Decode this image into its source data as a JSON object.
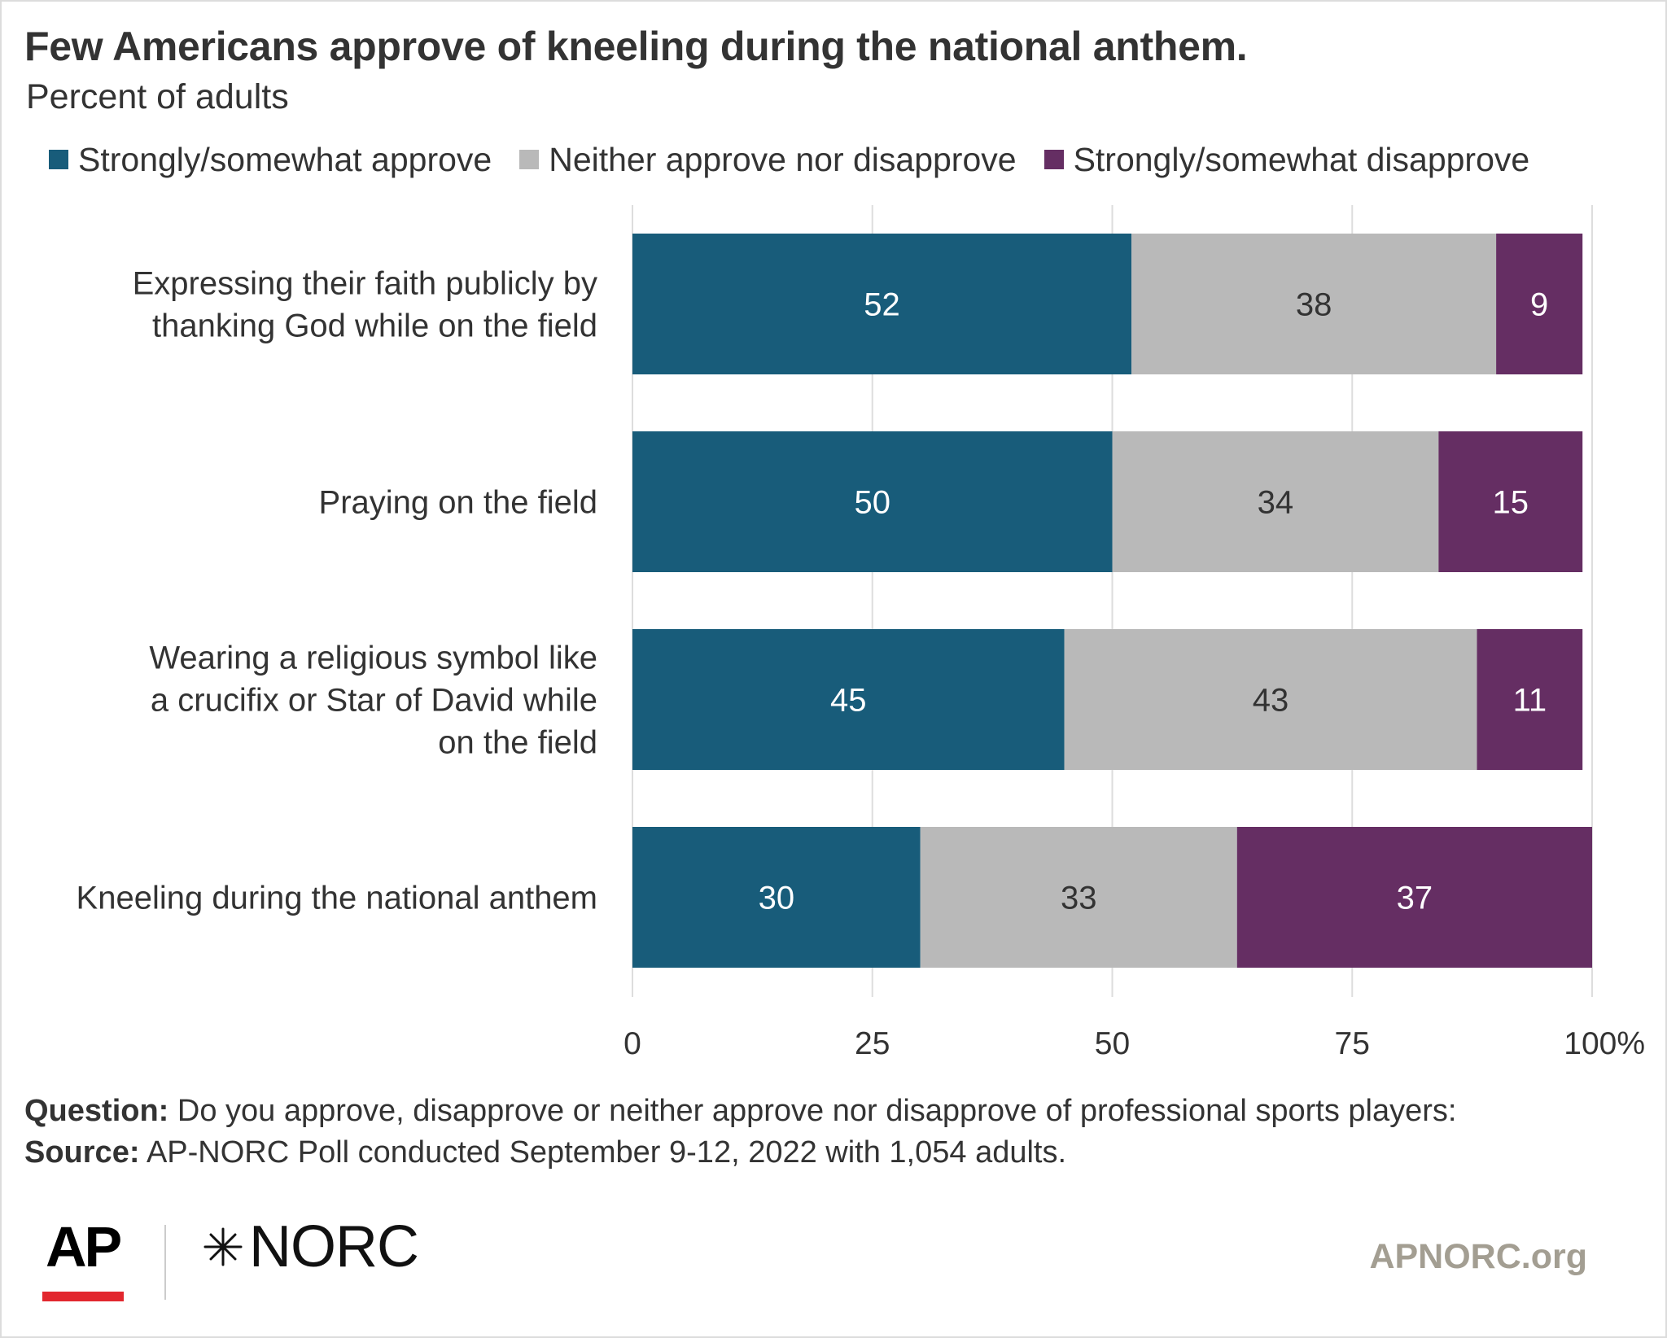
{
  "header": {
    "title": "Few Americans approve of kneeling during the national anthem.",
    "subtitle": "Percent of adults"
  },
  "colors": {
    "approve": "#185c7a",
    "neither": "#b9b9b9",
    "disapprove": "#652e63",
    "gridline": "#dddddd"
  },
  "chart_data": {
    "type": "bar",
    "orientation": "horizontal",
    "stacked": true,
    "categories": [
      [
        "Expressing their faith publicly by",
        "thanking God while on the field"
      ],
      [
        "Praying on the field"
      ],
      [
        "Wearing a religious symbol like",
        "a crucifix or Star of David while",
        "on the field"
      ],
      [
        "Kneeling during the national anthem"
      ]
    ],
    "series": [
      {
        "name": "Strongly/somewhat approve",
        "color": "#185c7a",
        "label_color": "#ffffff",
        "values": [
          52,
          50,
          45,
          30
        ]
      },
      {
        "name": "Neither approve nor disapprove",
        "color": "#b9b9b9",
        "label_color": "#333333",
        "values": [
          38,
          34,
          43,
          33
        ]
      },
      {
        "name": "Strongly/somewhat disapprove",
        "color": "#652e63",
        "label_color": "#ffffff",
        "values": [
          9,
          15,
          11,
          37
        ]
      }
    ],
    "xlim": [
      0,
      100
    ],
    "xticks": [
      "0",
      "25",
      "50",
      "75",
      "100%"
    ],
    "grid": true,
    "legend": "top"
  },
  "footer": {
    "question_label": "Question:",
    "question_text": "Do you approve, disapprove or neither approve nor disapprove of professional sports players:",
    "source_label": "Source:",
    "source_text": "AP-NORC Poll conducted September 9-12, 2022 with 1,054 adults."
  },
  "branding": {
    "ap_logo_text": "AP",
    "norc_logo_text": "NORC",
    "site": "APNORC.org"
  }
}
